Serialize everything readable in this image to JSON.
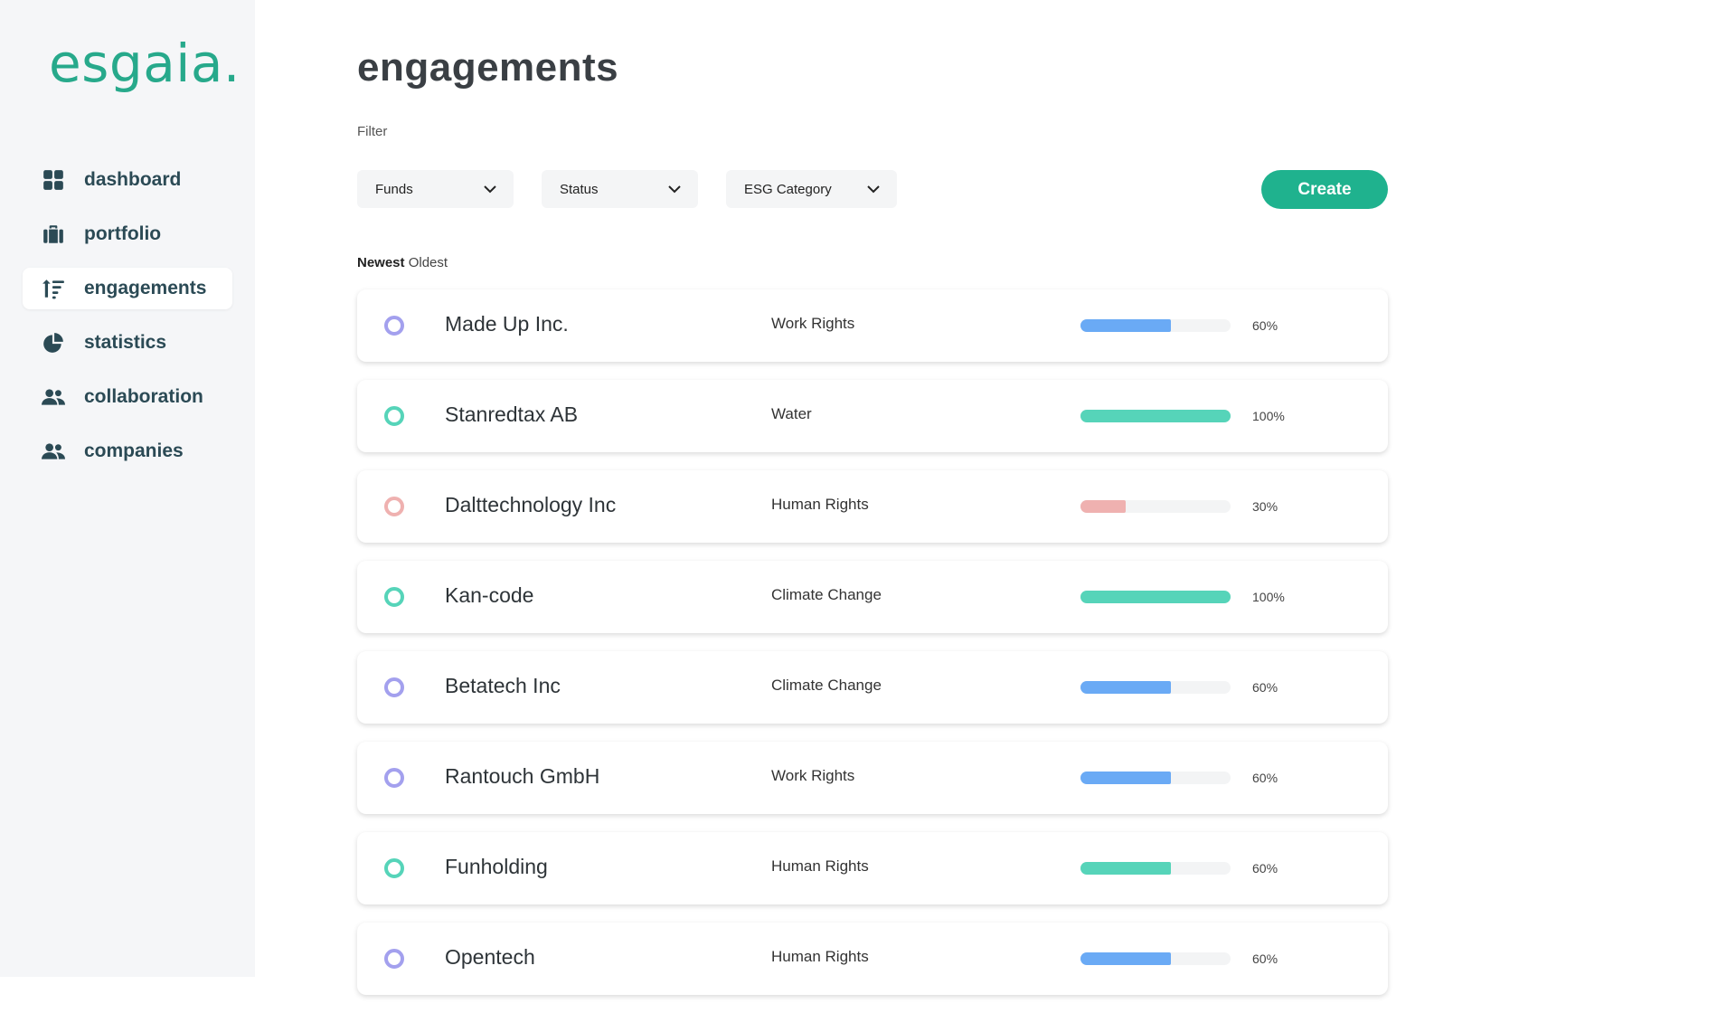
{
  "brand": {
    "logo": "esgaia.",
    "accent": "#27a98b"
  },
  "sidebar": {
    "items": [
      {
        "label": "dashboard",
        "icon": "grid-icon"
      },
      {
        "label": "portfolio",
        "icon": "briefcase-icon"
      },
      {
        "label": "engagements",
        "icon": "sort-icon",
        "active": true
      },
      {
        "label": "statistics",
        "icon": "pie-chart-icon"
      },
      {
        "label": "collaboration",
        "icon": "users-icon"
      },
      {
        "label": "companies",
        "icon": "users-icon"
      }
    ]
  },
  "main": {
    "title": "engagements",
    "filter_label": "Filter",
    "filters": [
      {
        "label": "Funds"
      },
      {
        "label": "Status"
      },
      {
        "label": "ESG Category"
      }
    ],
    "create_label": "Create",
    "sort": {
      "newest": "Newest",
      "oldest": "Oldest",
      "selected": "Newest"
    }
  },
  "engagements": [
    {
      "company": "Made Up Inc.",
      "category": "Work Rights",
      "progress": 60,
      "progress_label": "60%",
      "color": "#6aaaf5",
      "ring_color": "#a3a0ee"
    },
    {
      "company": "Stanredtax AB",
      "category": "Water",
      "progress": 100,
      "progress_label": "100%",
      "color": "#56d4b9",
      "ring_color": "#56d4b9"
    },
    {
      "company": "Dalttechnology Inc",
      "category": "Human Rights",
      "progress": 30,
      "progress_label": "30%",
      "color": "#efb1b0",
      "ring_color": "#efb1b0"
    },
    {
      "company": "Kan-code",
      "category": "Climate Change",
      "progress": 100,
      "progress_label": "100%",
      "color": "#56d4b9",
      "ring_color": "#56d4b9"
    },
    {
      "company": "Betatech Inc",
      "category": "Climate Change",
      "progress": 60,
      "progress_label": "60%",
      "color": "#6aaaf5",
      "ring_color": "#a3a0ee"
    },
    {
      "company": "Rantouch GmbH",
      "category": "Work Rights",
      "progress": 60,
      "progress_label": "60%",
      "color": "#6aaaf5",
      "ring_color": "#a3a0ee"
    },
    {
      "company": "Funholding",
      "category": "Human Rights",
      "progress": 60,
      "progress_label": "60%",
      "color": "#56d4b9",
      "ring_color": "#56d4b9"
    },
    {
      "company": "Opentech",
      "category": "Human Rights",
      "progress": 60,
      "progress_label": "60%",
      "color": "#6aaaf5",
      "ring_color": "#a3a0ee"
    }
  ]
}
